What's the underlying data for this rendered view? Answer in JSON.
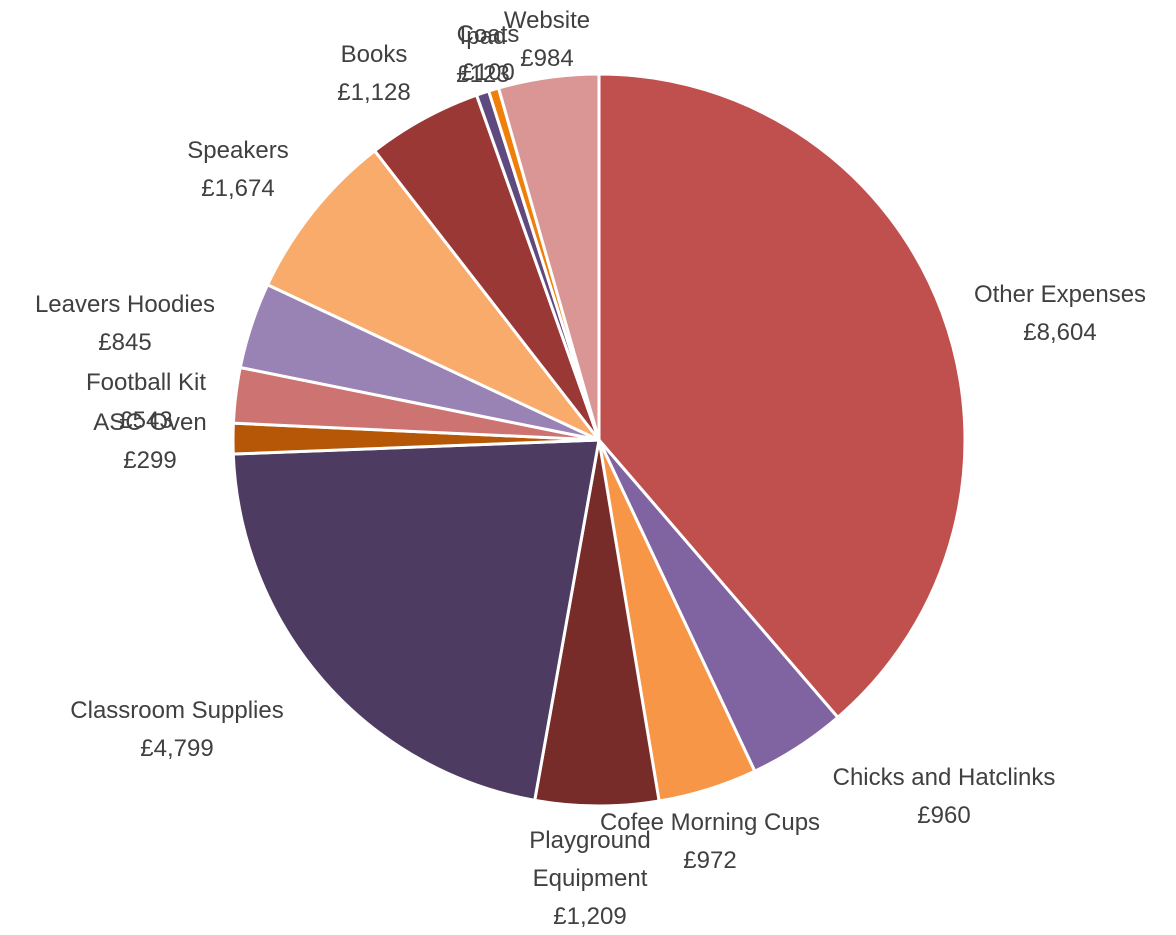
{
  "chart_data": {
    "type": "pie",
    "title": "",
    "start": "12 o'clock",
    "direction": "clockwise",
    "slices": [
      {
        "name": "Other Expenses",
        "value": 8604,
        "label": "£8,604",
        "color": "#C0504D"
      },
      {
        "name": "Chicks and Hatclinks",
        "value": 960,
        "label": "£960",
        "color": "#8064A2"
      },
      {
        "name": "Cofee Morning Cups",
        "value": 972,
        "label": "£972",
        "color": "#F79646"
      },
      {
        "name": "Playground Equipment",
        "value": 1209,
        "label": "£1,209",
        "color": "#772C2A"
      },
      {
        "name": "Classroom Supplies",
        "value": 4799,
        "label": "£4,799",
        "color": "#4D3B62"
      },
      {
        "name": "ASC Oven",
        "value": 299,
        "label": "£299",
        "color": "#B65708"
      },
      {
        "name": "Football Kit",
        "value": 543,
        "label": "£543",
        "color": "#CD7371"
      },
      {
        "name": "Leavers Hoodies",
        "value": 845,
        "label": "£845",
        "color": "#9982B4"
      },
      {
        "name": "Speakers",
        "value": 1674,
        "label": "£1,674",
        "color": "#F9AB6B"
      },
      {
        "name": "Books",
        "value": 1128,
        "label": "£1,128",
        "color": "#9A3836"
      },
      {
        "name": "Ipad",
        "value": 123,
        "label": "£123",
        "color": "#5E4A7E"
      },
      {
        "name": "Coats",
        "value": 100,
        "label": "£100",
        "color": "#F07F09"
      },
      {
        "name": "Website",
        "value": 984,
        "label": "£984",
        "color": "#D99695"
      }
    ]
  }
}
